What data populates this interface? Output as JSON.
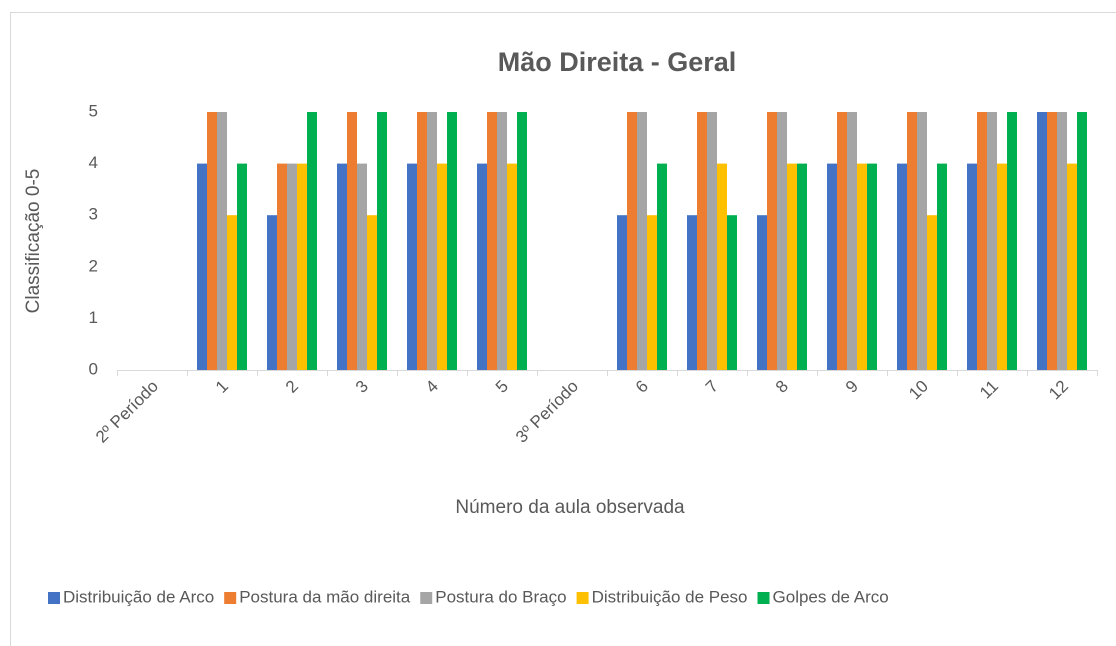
{
  "chart_data": {
    "type": "bar",
    "title": "Mão Direita - Geral",
    "x_label": "Número da aula observada",
    "y_label": "Classificação 0-5",
    "categories": [
      "2º Período",
      "1",
      "2",
      "3",
      "4",
      "5",
      "3º Período",
      "6",
      "7",
      "8",
      "9",
      "10",
      "11",
      "12"
    ],
    "series": [
      {
        "name": "Distribuição de Arco",
        "color": "#4472c4",
        "values": [
          null,
          4,
          3,
          4,
          4,
          4,
          null,
          3,
          3,
          3,
          4,
          4,
          4,
          5
        ]
      },
      {
        "name": "Postura da mão direita",
        "color": "#ed7d31",
        "values": [
          null,
          5,
          4,
          5,
          5,
          5,
          null,
          5,
          5,
          5,
          5,
          5,
          5,
          5
        ]
      },
      {
        "name": "Postura do Braço",
        "color": "#a5a5a5",
        "values": [
          null,
          5,
          4,
          4,
          5,
          5,
          null,
          5,
          5,
          5,
          5,
          5,
          5,
          5
        ]
      },
      {
        "name": "Distribuição de Peso",
        "color": "#ffc000",
        "values": [
          null,
          3,
          4,
          3,
          4,
          4,
          null,
          3,
          4,
          4,
          4,
          3,
          4,
          4
        ]
      },
      {
        "name": "Golpes de Arco",
        "color": "#00b050",
        "values": [
          null,
          4,
          5,
          5,
          5,
          5,
          null,
          4,
          3,
          4,
          4,
          4,
          5,
          5
        ]
      }
    ],
    "ylim": [
      0,
      5
    ],
    "yticks": [
      0,
      1,
      2,
      3,
      4,
      5
    ],
    "grid": false,
    "legend": "bottom"
  }
}
